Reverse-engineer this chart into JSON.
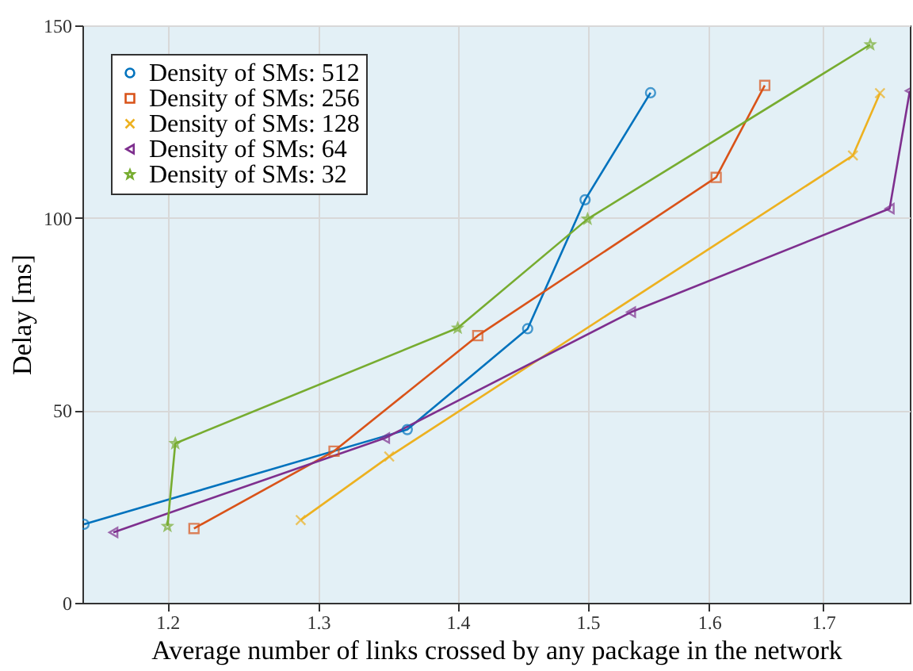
{
  "chart_data": {
    "type": "line",
    "xlabel": "Average number of links crossed by any package in the network",
    "ylabel": "Delay [ms]",
    "xlim": [
      1.147,
      1.78
    ],
    "xticks": [
      1.2,
      1.3,
      1.4,
      1.5,
      1.6,
      1.7
    ],
    "ylim": [
      0,
      150
    ],
    "yticks": [
      0,
      50,
      100,
      150
    ],
    "log": "x",
    "grid": true,
    "legend": "top left",
    "line_style": "solid",
    "series": [
      {
        "name": "Density of SMs: 512",
        "color": "#0072bd",
        "marker": "circle",
        "x": [
          1.148,
          1.363,
          1.453,
          1.498,
          1.551
        ],
        "values": [
          20.4,
          45,
          71.2,
          104.7,
          132.5
        ]
      },
      {
        "name": "Density of SMs: 256",
        "color": "#d95319",
        "marker": "square",
        "x": [
          1.217,
          1.311,
          1.415,
          1.606,
          1.648
        ],
        "values": [
          19.3,
          39.4,
          69.4,
          110.5,
          134.4
        ]
      },
      {
        "name": "Density of SMs: 128",
        "color": "#edb120",
        "marker": "cross",
        "x": [
          1.288,
          1.35,
          1.727,
          1.752
        ],
        "values": [
          21.5,
          38,
          116.2,
          132.4
        ]
      },
      {
        "name": "Density of SMs: 64",
        "color": "#7e2f8e",
        "marker": "triangle",
        "x": [
          1.166,
          1.347,
          1.535,
          1.761,
          1.78
        ],
        "values": [
          18.3,
          42.8,
          75.5,
          102.4,
          133
        ]
      },
      {
        "name": "Density of SMs: 32",
        "color": "#77ac30",
        "marker": "star",
        "x": [
          1.2,
          1.205,
          1.4,
          1.5,
          1.743
        ],
        "values": [
          19.9,
          41.4,
          71.4,
          99.7,
          145
        ]
      }
    ]
  }
}
